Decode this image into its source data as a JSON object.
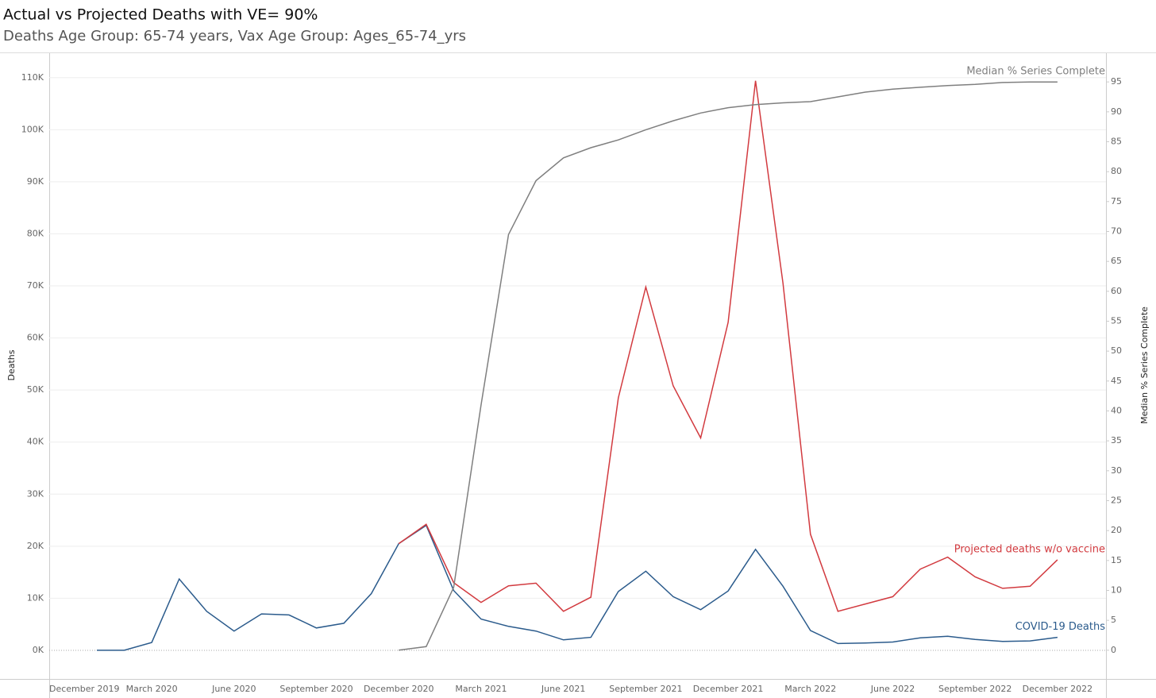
{
  "chart_data": {
    "type": "line",
    "title": "Actual vs Projected Deaths with VE= 90%",
    "subtitle": "Deaths Age Group: 65-74 years, Vax Age Group: Ages_65-74_yrs",
    "y_label": "Deaths",
    "y2_label": "Median % Series Complete",
    "categories": [
      "December 2019",
      null,
      null,
      "March 2020",
      null,
      null,
      "June 2020",
      null,
      null,
      "September 2020",
      null,
      null,
      "December 2020",
      null,
      null,
      "March 2021",
      null,
      null,
      "June 2021",
      null,
      null,
      "September 2021",
      null,
      null,
      "December 2021",
      null,
      null,
      "March 2022",
      null,
      null,
      "June 2022",
      null,
      null,
      "September 2022",
      null,
      null,
      "December 2022"
    ],
    "ylim": [
      -5500,
      114700
    ],
    "yticks": [
      {
        "value": 0,
        "label": "0K"
      },
      {
        "value": 10000,
        "label": "10K"
      },
      {
        "value": 20000,
        "label": "20K"
      },
      {
        "value": 30000,
        "label": "30K"
      },
      {
        "value": 40000,
        "label": "40K"
      },
      {
        "value": 50000,
        "label": "50K"
      },
      {
        "value": 60000,
        "label": "60K"
      },
      {
        "value": 70000,
        "label": "70K"
      },
      {
        "value": 80000,
        "label": "80K"
      },
      {
        "value": 90000,
        "label": "90K"
      },
      {
        "value": 100000,
        "label": "100K"
      },
      {
        "value": 110000,
        "label": "110K"
      }
    ],
    "y2lim": [
      -4.8,
      99.8
    ],
    "y2ticks": [
      0,
      5,
      10,
      15,
      20,
      25,
      30,
      35,
      40,
      45,
      50,
      55,
      60,
      65,
      70,
      75,
      80,
      85,
      90,
      95
    ],
    "grid": true,
    "series": [
      {
        "name": "COVID-19 Deaths",
        "color": "#2b5b8c",
        "values": [
          null,
          0,
          0,
          1500,
          13700,
          7500,
          3700,
          7000,
          6800,
          4300,
          5200,
          10900,
          20500,
          24000,
          11500,
          6000,
          4600,
          3700,
          2000,
          2500,
          11300,
          15200,
          10300,
          7800,
          11400,
          19400,
          12300,
          3800,
          1300,
          1400,
          1600,
          2400,
          2700,
          2100,
          1700,
          1800,
          2500
        ]
      },
      {
        "name": "Projected deaths w/o vaccine",
        "color": "#d23a3f",
        "values": [
          null,
          null,
          null,
          null,
          null,
          null,
          null,
          null,
          null,
          null,
          null,
          null,
          20500,
          24200,
          13000,
          9200,
          12400,
          12900,
          7500,
          10200,
          48500,
          69800,
          50800,
          40800,
          63000,
          109400,
          70500,
          22300,
          7500,
          8900,
          10300,
          15600,
          17900,
          14100,
          11900,
          12300,
          17400
        ]
      },
      {
        "name": "Median % Series Complete",
        "color": "#7f7f7f",
        "axis": "y2",
        "values": [
          null,
          null,
          null,
          null,
          null,
          null,
          null,
          null,
          null,
          null,
          null,
          null,
          0,
          0.6,
          10.5,
          41,
          69.5,
          78.5,
          82.3,
          84,
          85.3,
          87,
          88.5,
          89.8,
          90.7,
          91.2,
          91.5,
          91.7,
          92.5,
          93.3,
          93.8,
          94.1,
          94.4,
          94.6,
          94.9,
          95,
          95
        ]
      }
    ]
  }
}
